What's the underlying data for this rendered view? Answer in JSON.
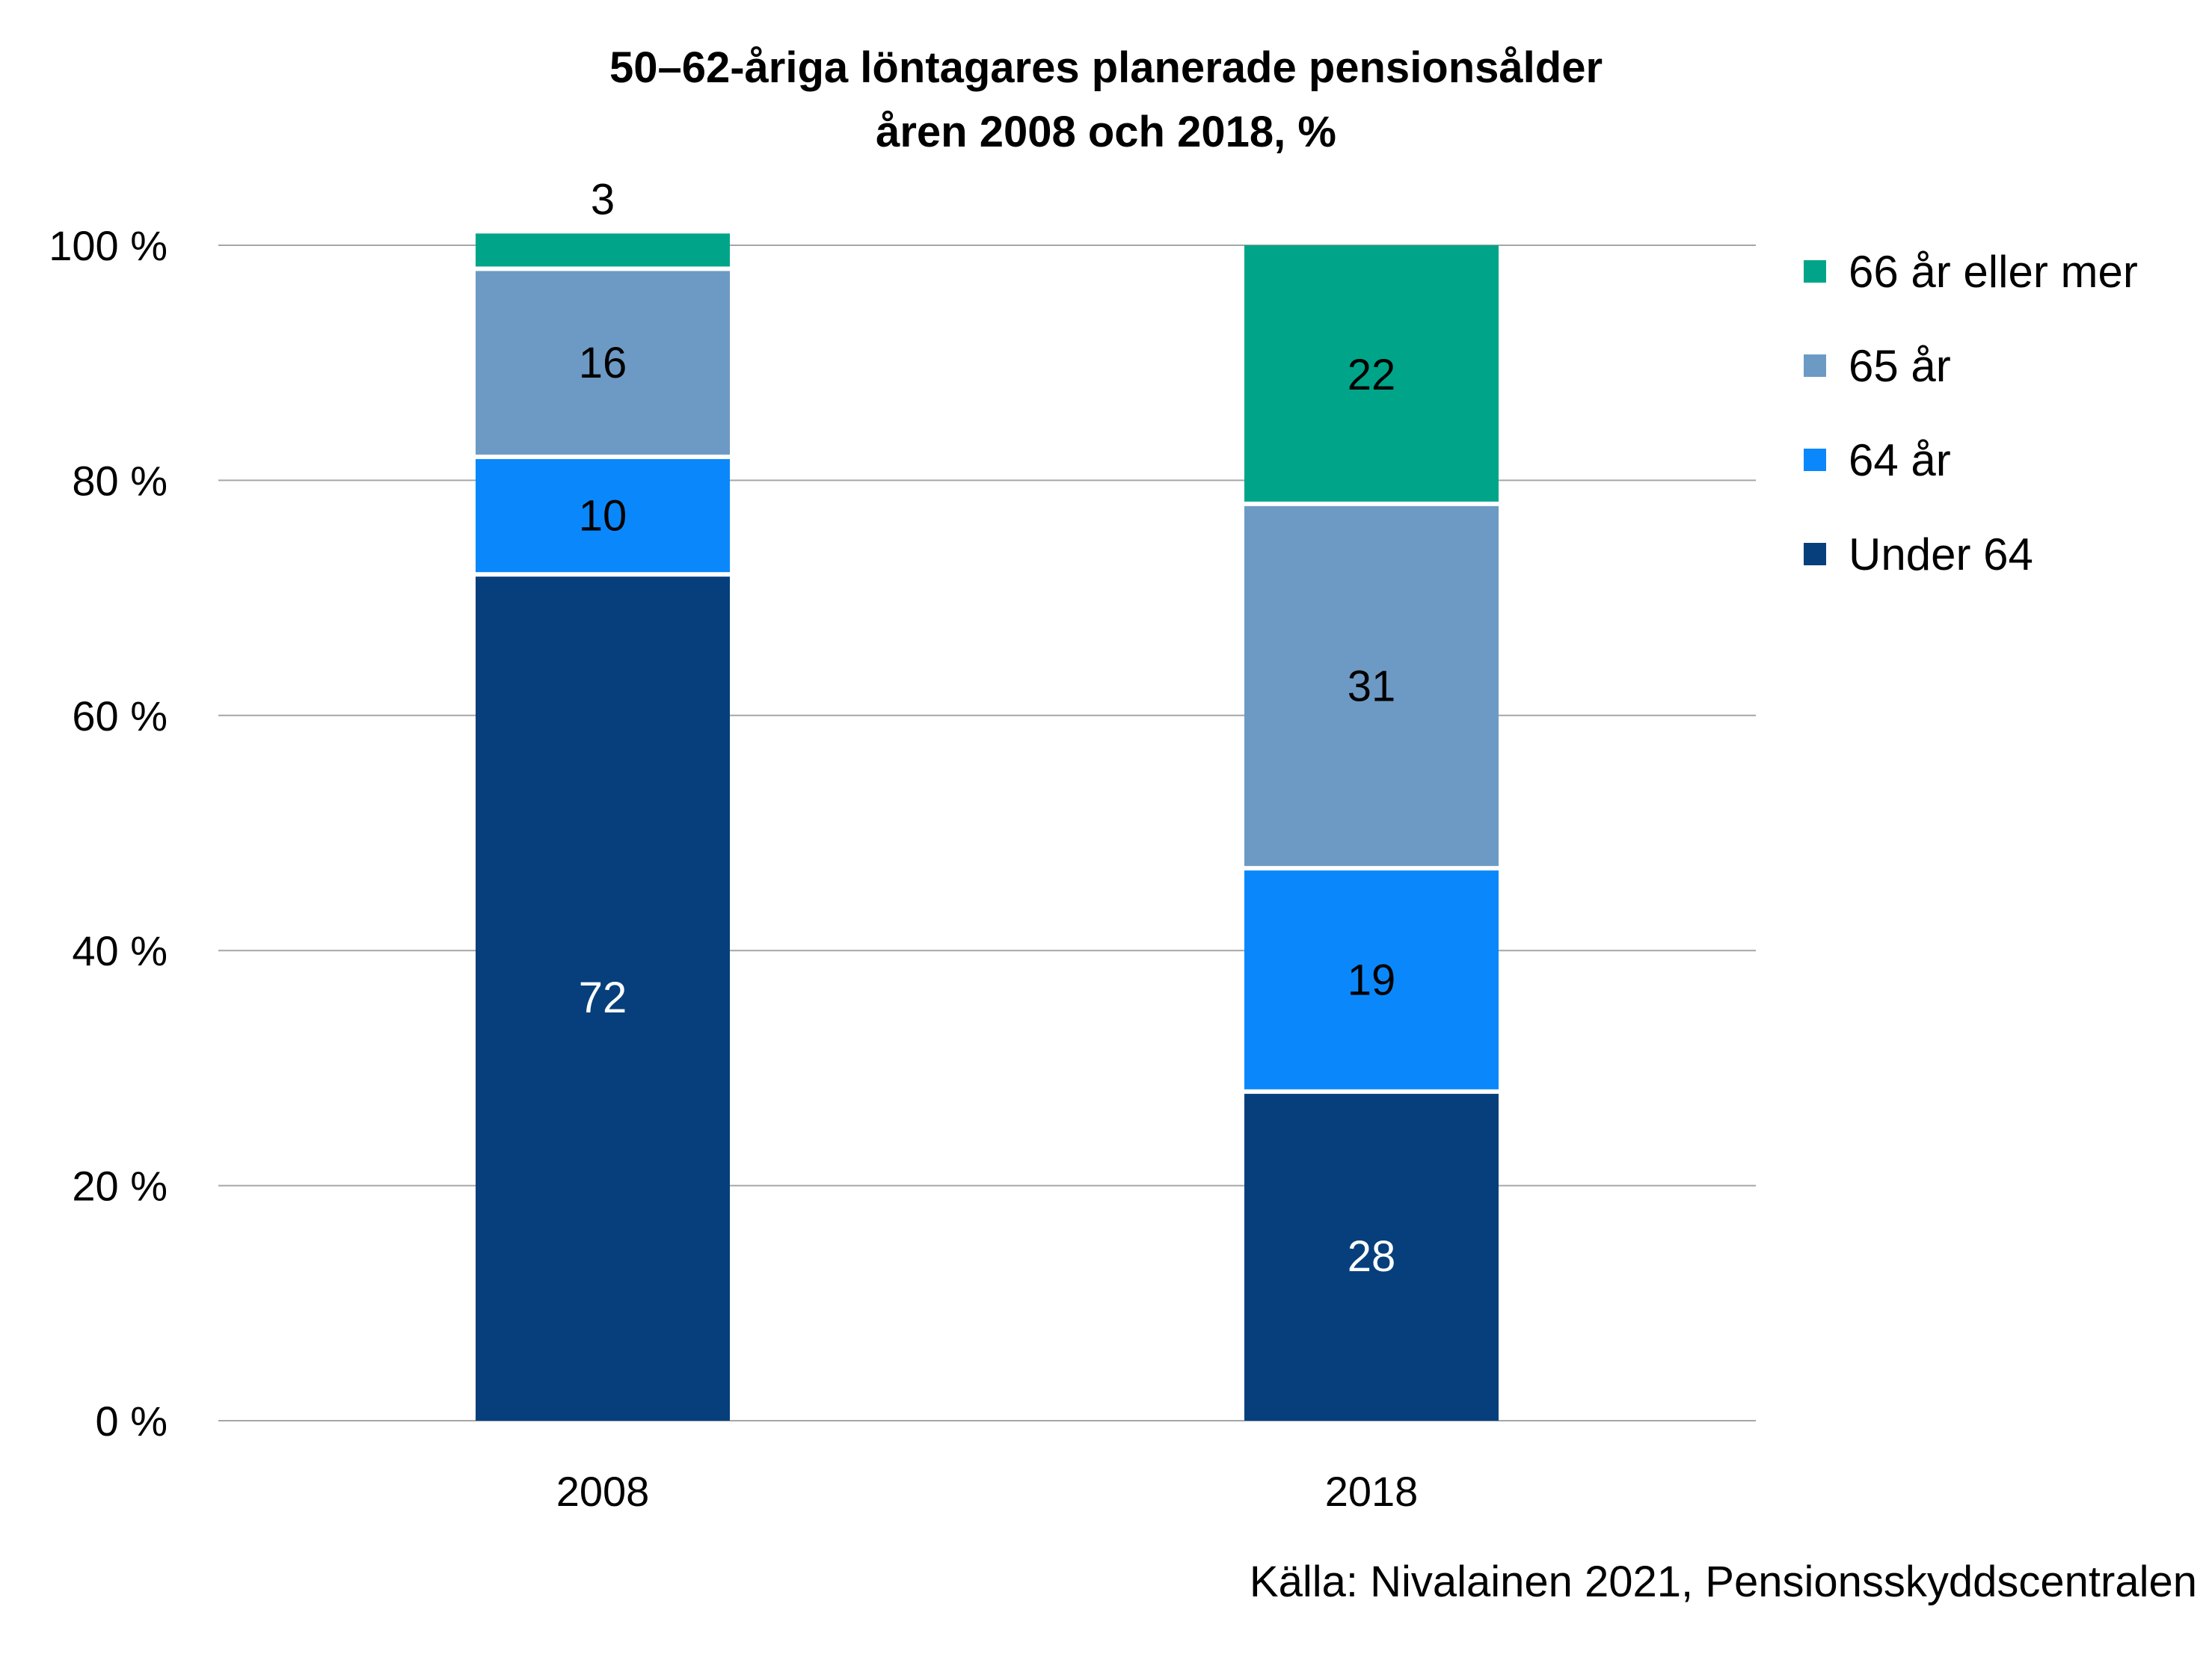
{
  "chart_data": {
    "type": "bar",
    "stacked": true,
    "title_line1": "50–62-åriga löntagares planerade pensionsålder",
    "title_line2": "åren 2008 och 2018, %",
    "categories": [
      "2008",
      "2018"
    ],
    "series": [
      {
        "name": "Under 64",
        "color": "#063f7c",
        "label_color": "#ffffff",
        "values": [
          72,
          28
        ]
      },
      {
        "name": "64 år",
        "color": "#0a88fb",
        "label_color": "#000000",
        "values": [
          10,
          19
        ]
      },
      {
        "name": "65 år",
        "color": "#6d9ac4",
        "label_color": "#000000",
        "values": [
          16,
          31
        ]
      },
      {
        "name": "66 år eller mer",
        "color": "#00a589",
        "label_color": "#000000",
        "values": [
          3,
          22
        ]
      }
    ],
    "yticks": [
      "0 %",
      "20 %",
      "40 %",
      "60 %",
      "80 %",
      "100 %"
    ],
    "ylim": [
      0,
      100
    ],
    "grid": true,
    "legend_position": "right",
    "gridline_color": "#a6a6a6"
  },
  "legend": {
    "items": [
      {
        "label": "66 år eller mer",
        "color": "#00a589"
      },
      {
        "label": "65 år",
        "color": "#6d9ac4"
      },
      {
        "label": "64 år",
        "color": "#0a88fb"
      },
      {
        "label": "Under 64",
        "color": "#063f7c"
      }
    ]
  },
  "source": "Källa: Nivalainen 2021, Pensionsskyddscentralen"
}
